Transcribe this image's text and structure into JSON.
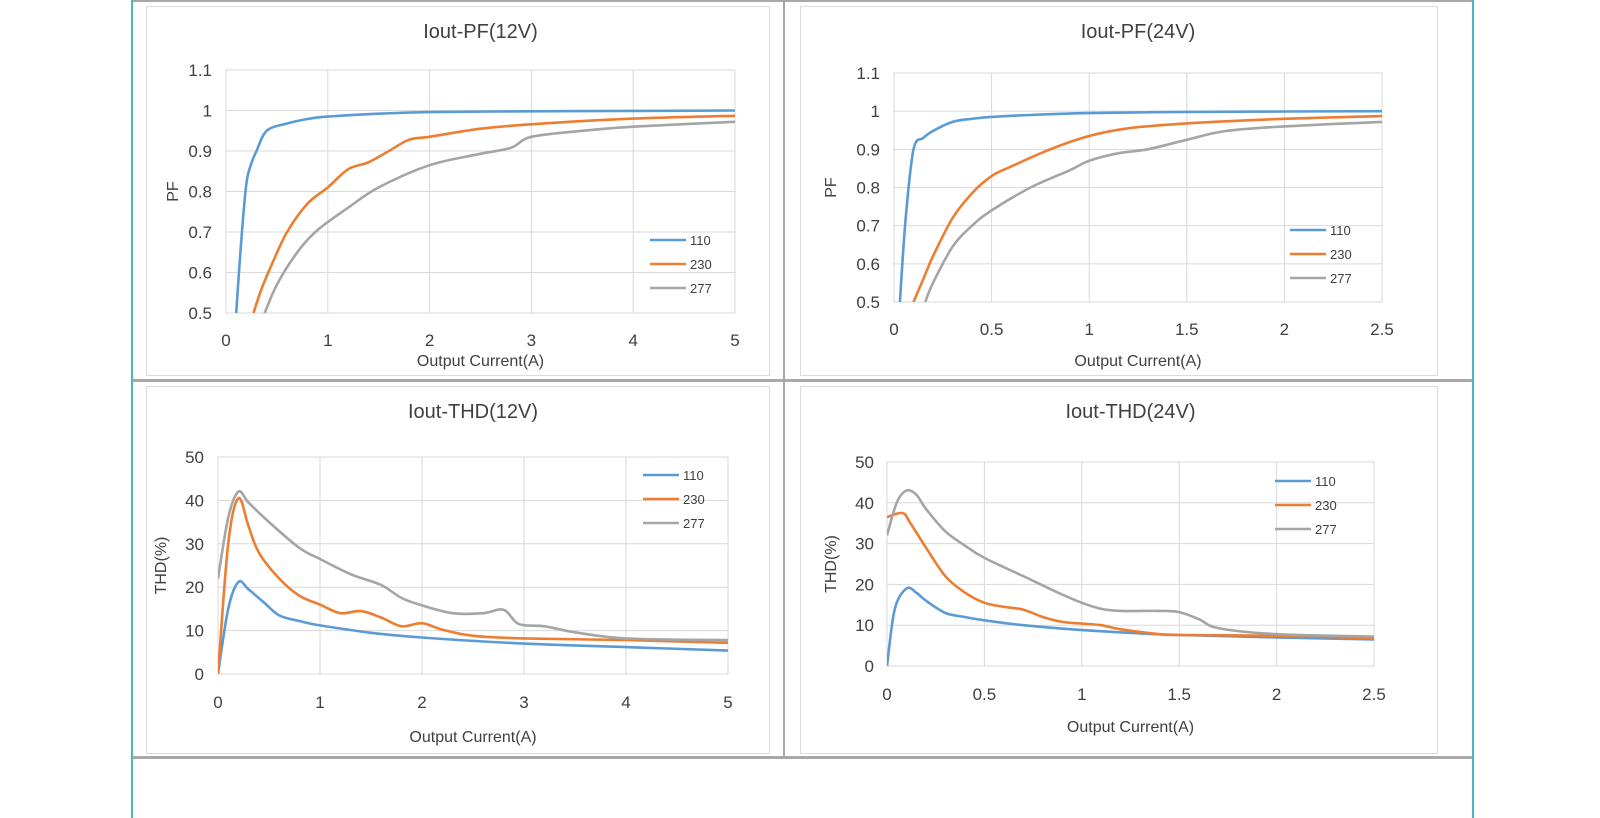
{
  "colors": {
    "s110": "#5b9bd5",
    "s230": "#ed7d31",
    "s277": "#a5a5a5",
    "frame": "#4ab8c4",
    "grid": "#d9d9d9"
  },
  "chart_data": [
    {
      "type": "line",
      "title": "Iout-PF(12V)",
      "xlabel": "Output Current(A)",
      "ylabel": "PF",
      "xlim": [
        0,
        5
      ],
      "ylim": [
        0.5,
        1.1
      ],
      "xticks": [
        "0",
        "1",
        "2",
        "3",
        "4",
        "5"
      ],
      "yticks": [
        "0.5",
        "0.6",
        "0.7",
        "0.8",
        "0.9",
        "1",
        "1.1"
      ],
      "xtick_values": [
        0,
        1,
        2,
        3,
        4,
        5
      ],
      "ytick_values": [
        0.5,
        0.6,
        0.7,
        0.8,
        0.9,
        1.0,
        1.1
      ],
      "grid": true,
      "legend": "right",
      "series": [
        {
          "name": "110",
          "x": [
            0.1,
            0.15,
            0.2,
            0.25,
            0.3,
            0.4,
            0.6,
            0.8,
            1.0,
            1.5,
            2,
            3,
            4,
            5
          ],
          "y": [
            0.5,
            0.68,
            0.82,
            0.87,
            0.9,
            0.95,
            0.968,
            0.979,
            0.985,
            0.992,
            0.996,
            0.998,
            0.999,
            1.0
          ]
        },
        {
          "name": "230",
          "x": [
            0.27,
            0.35,
            0.45,
            0.6,
            0.8,
            1.0,
            1.2,
            1.4,
            1.6,
            1.8,
            2.0,
            2.5,
            3,
            4,
            5
          ],
          "y": [
            0.5,
            0.56,
            0.62,
            0.7,
            0.77,
            0.81,
            0.855,
            0.872,
            0.9,
            0.928,
            0.935,
            0.955,
            0.966,
            0.98,
            0.987
          ]
        },
        {
          "name": "277",
          "x": [
            0.38,
            0.5,
            0.7,
            0.9,
            1.2,
            1.5,
            2.0,
            2.5,
            2.8,
            3.0,
            3.5,
            4,
            5
          ],
          "y": [
            0.5,
            0.57,
            0.65,
            0.705,
            0.76,
            0.81,
            0.865,
            0.893,
            0.908,
            0.935,
            0.95,
            0.96,
            0.972
          ]
        }
      ]
    },
    {
      "type": "line",
      "title": "Iout-PF(24V)",
      "xlabel": "Output Current(A)",
      "ylabel": "PF",
      "xlim": [
        0,
        2.5
      ],
      "ylim": [
        0.5,
        1.1
      ],
      "xticks": [
        "0",
        "0.5",
        "1",
        "1.5",
        "2",
        "2.5"
      ],
      "yticks": [
        "0.5",
        "0.6",
        "0.7",
        "0.8",
        "0.9",
        "1",
        "1.1"
      ],
      "xtick_values": [
        0,
        0.5,
        1,
        1.5,
        2,
        2.5
      ],
      "ytick_values": [
        0.5,
        0.6,
        0.7,
        0.8,
        0.9,
        1.0,
        1.1
      ],
      "grid": true,
      "legend": "right",
      "series": [
        {
          "name": "110",
          "x": [
            0.03,
            0.06,
            0.1,
            0.15,
            0.2,
            0.3,
            0.4,
            0.5,
            0.7,
            1.0,
            1.5,
            2.0,
            2.5
          ],
          "y": [
            0.5,
            0.72,
            0.9,
            0.93,
            0.948,
            0.972,
            0.98,
            0.985,
            0.99,
            0.995,
            0.998,
            0.999,
            1.0
          ]
        },
        {
          "name": "230",
          "x": [
            0.1,
            0.15,
            0.2,
            0.3,
            0.4,
            0.5,
            0.6,
            0.8,
            1.0,
            1.2,
            1.5,
            2.0,
            2.5
          ],
          "y": [
            0.5,
            0.56,
            0.62,
            0.72,
            0.785,
            0.83,
            0.855,
            0.9,
            0.935,
            0.955,
            0.968,
            0.98,
            0.987
          ]
        },
        {
          "name": "277",
          "x": [
            0.16,
            0.2,
            0.3,
            0.4,
            0.5,
            0.7,
            0.9,
            1.0,
            1.15,
            1.3,
            1.5,
            1.7,
            2.0,
            2.5
          ],
          "y": [
            0.5,
            0.55,
            0.645,
            0.7,
            0.74,
            0.8,
            0.845,
            0.87,
            0.89,
            0.9,
            0.925,
            0.948,
            0.96,
            0.972
          ]
        }
      ]
    },
    {
      "type": "line",
      "title": "Iout-THD(12V)",
      "xlabel": "Output Current(A)",
      "ylabel": "THD(%)",
      "xlim": [
        0,
        5
      ],
      "ylim": [
        0,
        50
      ],
      "xticks": [
        "0",
        "1",
        "2",
        "3",
        "4",
        "5"
      ],
      "yticks": [
        "0",
        "10",
        "20",
        "30",
        "40",
        "50"
      ],
      "xtick_values": [
        0,
        1,
        2,
        3,
        4,
        5
      ],
      "ytick_values": [
        0,
        10,
        20,
        30,
        40,
        50
      ],
      "grid": true,
      "legend": "top-right",
      "series": [
        {
          "name": "110",
          "x": [
            0,
            0.1,
            0.2,
            0.3,
            0.45,
            0.6,
            0.8,
            1.0,
            1.5,
            2.0,
            3.0,
            4.0,
            5.0
          ],
          "y": [
            0,
            15,
            21.2,
            19.5,
            16.5,
            13.5,
            12.2,
            11.2,
            9.5,
            8.4,
            7.0,
            6.2,
            5.4
          ]
        },
        {
          "name": "230",
          "x": [
            0,
            0.1,
            0.2,
            0.3,
            0.4,
            0.6,
            0.8,
            1.0,
            1.2,
            1.4,
            1.6,
            1.8,
            2.0,
            2.2,
            2.5,
            3.0,
            4.0,
            5.0
          ],
          "y": [
            0,
            30,
            40.5,
            34,
            28,
            22,
            18,
            16,
            14,
            14.5,
            13,
            11,
            11.7,
            10.2,
            8.8,
            8.2,
            7.8,
            7.2
          ]
        },
        {
          "name": "277",
          "x": [
            0,
            0.1,
            0.2,
            0.3,
            0.5,
            0.8,
            1.0,
            1.3,
            1.6,
            1.8,
            2.0,
            2.3,
            2.6,
            2.8,
            2.95,
            3.2,
            3.5,
            4.0,
            5.0
          ],
          "y": [
            22,
            36,
            42,
            39.5,
            35,
            29,
            26.5,
            23,
            20.5,
            17.5,
            15.8,
            14.0,
            14.0,
            14.8,
            11.5,
            11.0,
            9.6,
            8.2,
            7.8
          ]
        }
      ]
    },
    {
      "type": "line",
      "title": "Iout-THD(24V)",
      "xlabel": "Output Current(A)",
      "ylabel": "THD(%)",
      "xlim": [
        0,
        2.5
      ],
      "ylim": [
        0,
        50
      ],
      "xticks": [
        "0",
        "0.5",
        "1",
        "1.5",
        "2",
        "2.5"
      ],
      "yticks": [
        "0",
        "10",
        "20",
        "30",
        "40",
        "50"
      ],
      "xtick_values": [
        0,
        0.5,
        1,
        1.5,
        2,
        2.5
      ],
      "ytick_values": [
        0,
        10,
        20,
        30,
        40,
        50
      ],
      "grid": true,
      "legend": "top-right",
      "series": [
        {
          "name": "110",
          "x": [
            0,
            0.04,
            0.1,
            0.15,
            0.2,
            0.3,
            0.4,
            0.5,
            0.7,
            1.0,
            1.3,
            1.5,
            2.0,
            2.5
          ],
          "y": [
            0,
            14,
            19,
            18,
            16,
            13,
            12,
            11.2,
            10,
            8.8,
            8,
            7.6,
            7,
            6.5
          ]
        },
        {
          "name": "230",
          "x": [
            0,
            0.08,
            0.12,
            0.2,
            0.3,
            0.4,
            0.5,
            0.6,
            0.7,
            0.8,
            0.9,
            1.0,
            1.1,
            1.2,
            1.4,
            1.5,
            2.0,
            2.5
          ],
          "y": [
            36.5,
            37.5,
            35,
            29,
            22,
            18,
            15.5,
            14.5,
            13.8,
            12,
            10.8,
            10.4,
            10,
            9,
            7.8,
            7.6,
            7.4,
            6.8
          ]
        },
        {
          "name": "277",
          "x": [
            0,
            0.05,
            0.1,
            0.15,
            0.2,
            0.3,
            0.4,
            0.5,
            0.7,
            0.9,
            1.0,
            1.1,
            1.2,
            1.4,
            1.5,
            1.6,
            1.7,
            2.0,
            2.5
          ],
          "y": [
            32,
            40,
            43,
            42,
            38.5,
            33,
            29.5,
            26.5,
            22,
            17.5,
            15.5,
            14,
            13.5,
            13.5,
            13.2,
            11.5,
            9.3,
            7.8,
            7.2
          ]
        }
      ]
    }
  ]
}
